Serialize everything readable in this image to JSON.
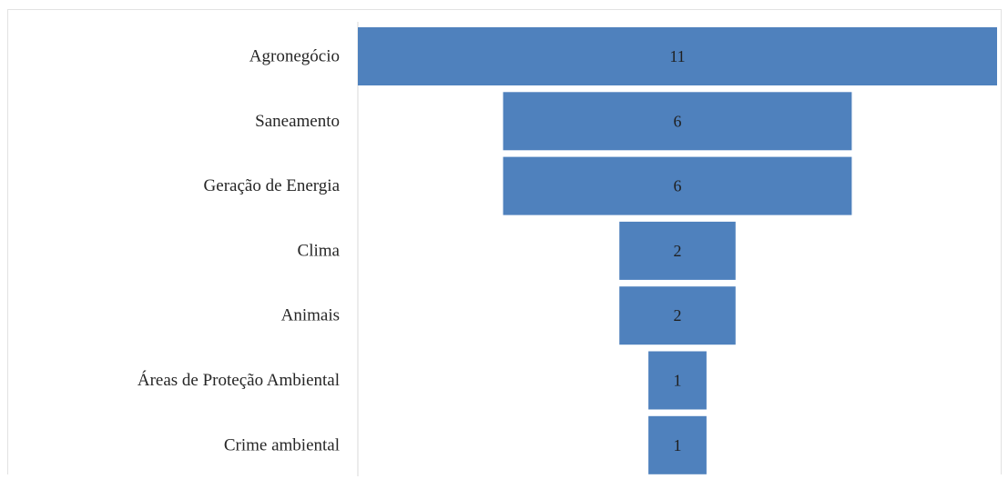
{
  "chart_data": {
    "type": "bar",
    "orientation": "horizontal",
    "style": "funnel",
    "categories": [
      "Agronegócio",
      "Saneamento",
      "Geração de Energia",
      "Clima",
      "Animais",
      "Áreas de Proteção Ambiental",
      "Crime ambiental"
    ],
    "values": [
      11,
      6,
      6,
      2,
      2,
      1,
      1
    ],
    "bar_color": "#4f81bd",
    "grid": false,
    "legend": "none"
  }
}
